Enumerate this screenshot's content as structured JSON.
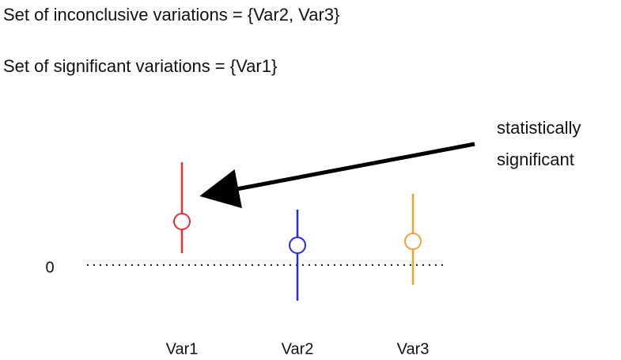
{
  "chart_data": {
    "type": "errorbar",
    "lines": [
      "Set of inconclusive variations = {Var2, Var3}",
      "Set of significant variations = {Var1}"
    ],
    "categories": [
      "Var1",
      "Var2",
      "Var3"
    ],
    "values": [
      1.1,
      0.5,
      0.6
    ],
    "low": [
      0.3,
      -0.9,
      -0.5
    ],
    "high": [
      2.6,
      1.4,
      1.8
    ],
    "colors": [
      "#e8303a",
      "#2a2ae0",
      "#f5a030"
    ],
    "ylim": [
      -1,
      3
    ],
    "yticks": [
      0
    ],
    "annotation": [
      "statistically",
      "significant"
    ]
  }
}
